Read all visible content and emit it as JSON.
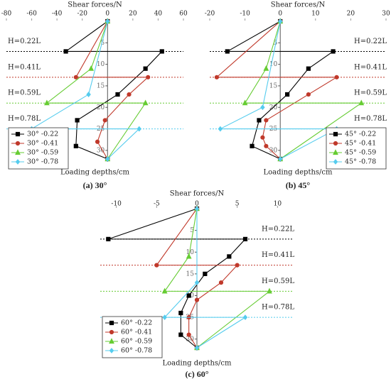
{
  "chart_data": [
    {
      "type": "line",
      "caption": "(a) 30°",
      "x_label": "Shear forces/N",
      "y_label": "Loading depths/cm",
      "xlim": [
        -80,
        60
      ],
      "xticks": [
        -80,
        -60,
        -40,
        -20,
        0,
        20,
        40,
        60
      ],
      "ylim": [
        0,
        32
      ],
      "yticks": [
        5,
        10,
        15,
        20,
        25,
        30
      ],
      "y_inverted": true,
      "legend": "lower left",
      "annotation_side": "left",
      "annotations": [
        {
          "text": "H=0.22L",
          "y": 7,
          "color": "#000000"
        },
        {
          "text": "H=0.41L",
          "y": 13,
          "color": "#c0392b"
        },
        {
          "text": "H=0.59L",
          "y": 19,
          "color": "#66cc33"
        },
        {
          "text": "H=0.78L",
          "y": 25,
          "color": "#55ccee"
        }
      ],
      "series": [
        {
          "name": "30° -0.22",
          "color": "#000000",
          "marker": "square",
          "x": [
            0,
            -33,
            43,
            30,
            8,
            -24,
            -25,
            0
          ],
          "y": [
            0,
            7,
            7,
            11,
            17,
            23,
            29,
            32
          ]
        },
        {
          "name": "30° -0.41",
          "color": "#c0392b",
          "marker": "circle",
          "x": [
            0,
            -25,
            32,
            17,
            -2,
            -8,
            0
          ],
          "y": [
            0,
            13,
            13,
            17,
            23,
            28,
            32
          ]
        },
        {
          "name": "30° -0.59",
          "color": "#66cc33",
          "marker": "triangle",
          "x": [
            0,
            -13,
            -48,
            30,
            0
          ],
          "y": [
            0,
            11,
            19,
            19,
            32
          ]
        },
        {
          "name": "30° -0.78",
          "color": "#55ccee",
          "marker": "diamond",
          "x": [
            0,
            -15,
            -60,
            25,
            0
          ],
          "y": [
            0,
            17,
            25,
            25,
            32
          ]
        }
      ]
    },
    {
      "type": "line",
      "caption": "(b) 45°",
      "x_label": "Shear forces/N",
      "y_label": "Loading depths/cm",
      "xlim": [
        -20,
        30
      ],
      "xticks": [
        -20,
        -10,
        0,
        10,
        20,
        30
      ],
      "ylim": [
        0,
        32
      ],
      "yticks": [
        5,
        10,
        15,
        20,
        25,
        30
      ],
      "y_inverted": true,
      "legend": "lower right",
      "annotation_side": "right",
      "annotations": [
        {
          "text": "H=0.22L",
          "y": 7,
          "color": "#000000"
        },
        {
          "text": "H=0.41L",
          "y": 13,
          "color": "#c0392b"
        },
        {
          "text": "H=0.59L",
          "y": 19,
          "color": "#66cc33"
        },
        {
          "text": "H=0.78L",
          "y": 25,
          "color": "#55ccee"
        }
      ],
      "series": [
        {
          "name": "45° -0.22",
          "color": "#000000",
          "marker": "square",
          "x": [
            0,
            -15,
            15,
            8,
            2,
            -6,
            -8,
            0
          ],
          "y": [
            0,
            7,
            7,
            11,
            17,
            23,
            29,
            32
          ]
        },
        {
          "name": "45° -0.41",
          "color": "#c0392b",
          "marker": "circle",
          "x": [
            0,
            -18,
            16,
            8,
            -4,
            -5,
            -4,
            0
          ],
          "y": [
            0,
            13,
            13,
            17,
            23,
            27,
            29,
            32
          ]
        },
        {
          "name": "45° -0.59",
          "color": "#66cc33",
          "marker": "triangle",
          "x": [
            0,
            -4,
            -10,
            23,
            0
          ],
          "y": [
            0,
            11,
            19,
            19,
            32
          ]
        },
        {
          "name": "45° -0.78",
          "color": "#55ccee",
          "marker": "diamond",
          "x": [
            0,
            -5,
            -17,
            16,
            0
          ],
          "y": [
            0,
            20,
            25,
            25,
            32
          ]
        }
      ]
    },
    {
      "type": "line",
      "caption": "(c) 60°",
      "x_label": "Shear forces/N",
      "y_label": "Loading depths/cm",
      "xlim": [
        -12,
        12
      ],
      "xticks": [
        -10,
        -5,
        0,
        5,
        10
      ],
      "ylim": [
        0,
        32
      ],
      "yticks": [
        5,
        10,
        15,
        20,
        25,
        30
      ],
      "y_inverted": true,
      "legend": "lower left",
      "annotation_side": "right",
      "annotations": [
        {
          "text": "H=0.22L",
          "y": 7,
          "color": "#000000"
        },
        {
          "text": "H=0.41L",
          "y": 13,
          "color": "#c0392b"
        },
        {
          "text": "H=0.59L",
          "y": 19,
          "color": "#66cc33"
        },
        {
          "text": "H=0.78L",
          "y": 25,
          "color": "#55ccee"
        }
      ],
      "series": [
        {
          "name": "60° -0.22",
          "color": "#000000",
          "marker": "square",
          "x": [
            0,
            -11,
            6,
            4,
            1,
            -1,
            -2,
            -2,
            0
          ],
          "y": [
            0,
            7,
            7,
            11,
            15,
            20,
            24,
            29,
            32
          ]
        },
        {
          "name": "60° -0.41",
          "color": "#c0392b",
          "marker": "circle",
          "x": [
            0,
            -5,
            5,
            3,
            0,
            -1,
            -1,
            0
          ],
          "y": [
            0,
            13,
            13,
            17,
            21,
            25,
            29,
            32
          ]
        },
        {
          "name": "60° -0.59",
          "color": "#66cc33",
          "marker": "triangle",
          "x": [
            0,
            -1,
            -4,
            9,
            0
          ],
          "y": [
            0,
            11,
            19,
            19,
            32
          ]
        },
        {
          "name": "60° -0.78",
          "color": "#55ccee",
          "marker": "diamond",
          "x": [
            0,
            0,
            -4,
            6,
            0
          ],
          "y": [
            0,
            17,
            25,
            25,
            32
          ]
        }
      ]
    }
  ]
}
